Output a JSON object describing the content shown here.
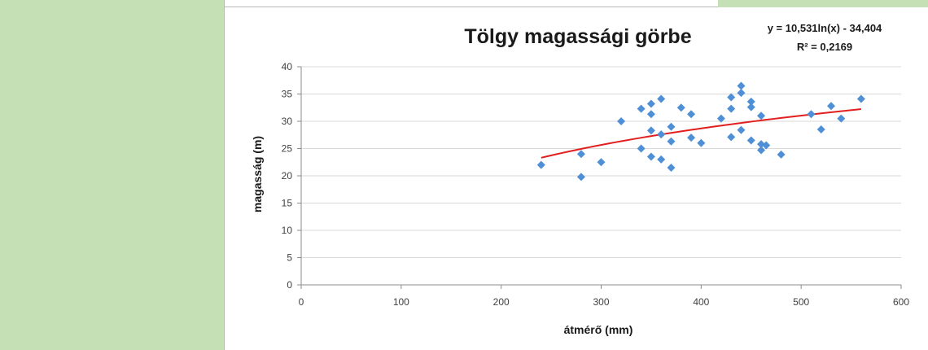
{
  "chart_data": {
    "type": "scatter",
    "title": "Tölgy magassági görbe",
    "xlabel": "átmérő (mm)",
    "ylabel": "magasság (m)",
    "xlim": [
      0,
      600
    ],
    "ylim": [
      0,
      40
    ],
    "x_ticks": [
      "0",
      "100",
      "200",
      "300",
      "400",
      "500",
      "600"
    ],
    "y_ticks": [
      "0",
      "5",
      "10",
      "15",
      "20",
      "25",
      "30",
      "35",
      "40"
    ],
    "grid": "horizontal",
    "marker_color": "#4f8fd6",
    "trend_color": "#e21f1f",
    "trendline": {
      "type": "logarithmic",
      "a": 10.531,
      "b": -34.404,
      "x_from": 240,
      "x_to": 560,
      "equation": "y = 10,531ln(x) - 34,404",
      "r2": "R² = 0,2169"
    },
    "points": [
      [
        240,
        22.0
      ],
      [
        280,
        24.0
      ],
      [
        280,
        19.8
      ],
      [
        300,
        22.5
      ],
      [
        320,
        30.0
      ],
      [
        340,
        32.3
      ],
      [
        340,
        25.0
      ],
      [
        350,
        33.2
      ],
      [
        350,
        31.3
      ],
      [
        350,
        28.3
      ],
      [
        350,
        23.5
      ],
      [
        360,
        34.1
      ],
      [
        360,
        27.6
      ],
      [
        360,
        23.0
      ],
      [
        370,
        29.0
      ],
      [
        370,
        26.3
      ],
      [
        370,
        21.5
      ],
      [
        380,
        32.5
      ],
      [
        390,
        31.3
      ],
      [
        390,
        27.0
      ],
      [
        400,
        26.0
      ],
      [
        420,
        30.5
      ],
      [
        430,
        34.4
      ],
      [
        430,
        32.3
      ],
      [
        430,
        27.1
      ],
      [
        440,
        36.5
      ],
      [
        440,
        35.2
      ],
      [
        440,
        28.4
      ],
      [
        450,
        33.6
      ],
      [
        450,
        32.6
      ],
      [
        450,
        26.5
      ],
      [
        460,
        31.0
      ],
      [
        460,
        25.8
      ],
      [
        460,
        24.7
      ],
      [
        465,
        25.6
      ],
      [
        480,
        23.9
      ],
      [
        510,
        31.3
      ],
      [
        520,
        28.5
      ],
      [
        530,
        32.8
      ],
      [
        540,
        30.5
      ],
      [
        560,
        34.1
      ]
    ]
  }
}
